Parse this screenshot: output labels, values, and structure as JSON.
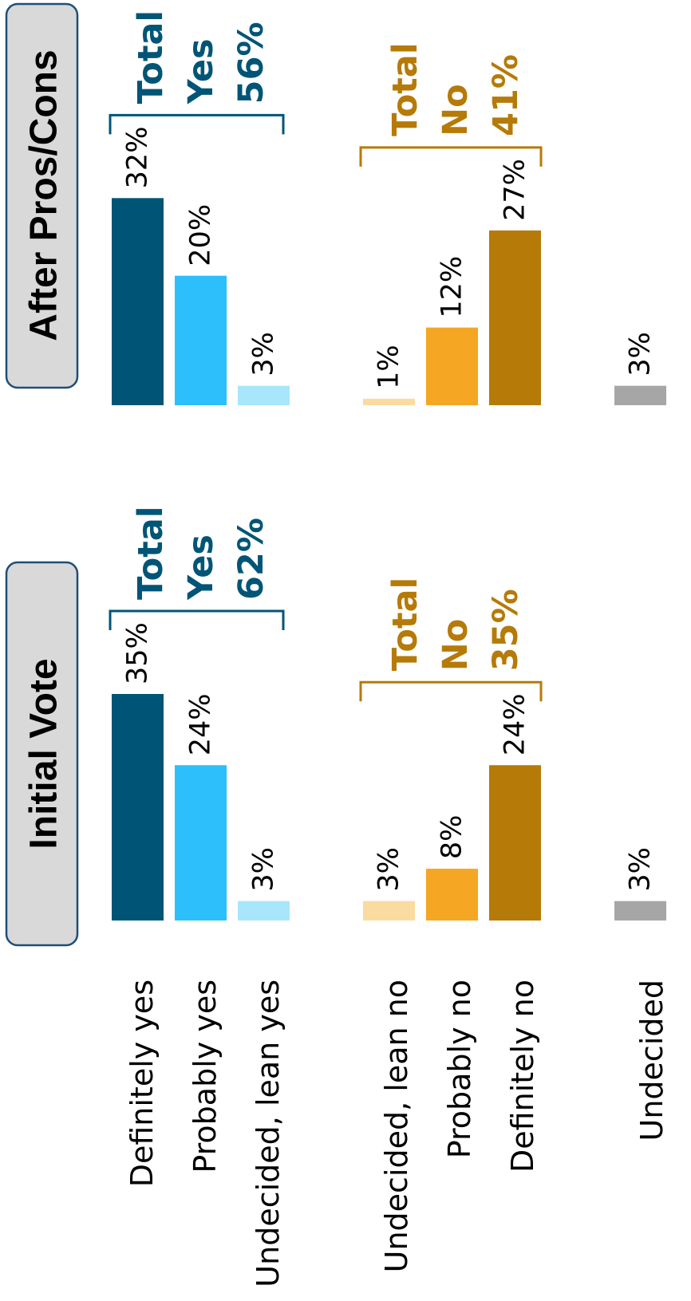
{
  "chart_data": {
    "type": "bar",
    "orientation": "rotated-90-ccw",
    "categories": [
      "Definitely yes",
      "Probably yes",
      "Undecided, lean yes",
      "Undecided, lean no",
      "Probably no",
      "Definitely no",
      "Undecided"
    ],
    "category_groups": [
      {
        "name": "yes",
        "categories": [
          0,
          1,
          2
        ]
      },
      {
        "name": "no",
        "categories": [
          3,
          4,
          5
        ]
      },
      {
        "name": "undecided",
        "categories": [
          6
        ]
      }
    ],
    "colors": [
      "#005576",
      "#2cbffc",
      "#a8e6fb",
      "#fadba0",
      "#f5a623",
      "#b67a08",
      "#a6a6a6"
    ],
    "series": [
      {
        "name": "Initial Vote",
        "values": [
          35,
          24,
          3,
          3,
          8,
          24,
          3
        ],
        "labels": [
          "35%",
          "24%",
          "3%",
          "3%",
          "8%",
          "24%",
          "3%"
        ]
      },
      {
        "name": "After Pros/Cons",
        "values": [
          32,
          20,
          3,
          1,
          12,
          27,
          3
        ],
        "labels": [
          "32%",
          "20%",
          "3%",
          "1%",
          "12%",
          "27%",
          "3%"
        ]
      }
    ],
    "totals": [
      {
        "yes": {
          "lines": [
            "Total",
            "Yes",
            "62%"
          ],
          "value": 62,
          "color": "#005576"
        },
        "no": {
          "lines": [
            "Total",
            "No",
            "35%"
          ],
          "value": 35,
          "color": "#b67a08"
        }
      },
      {
        "yes": {
          "lines": [
            "Total",
            "Yes",
            "56%"
          ],
          "value": 56,
          "color": "#005576"
        },
        "no": {
          "lines": [
            "Total",
            "No",
            "41%"
          ],
          "value": 41,
          "color": "#b67a08"
        }
      }
    ],
    "ylim": [
      0,
      35
    ],
    "grid": false,
    "title": "",
    "xlabel": "",
    "ylabel": ""
  }
}
